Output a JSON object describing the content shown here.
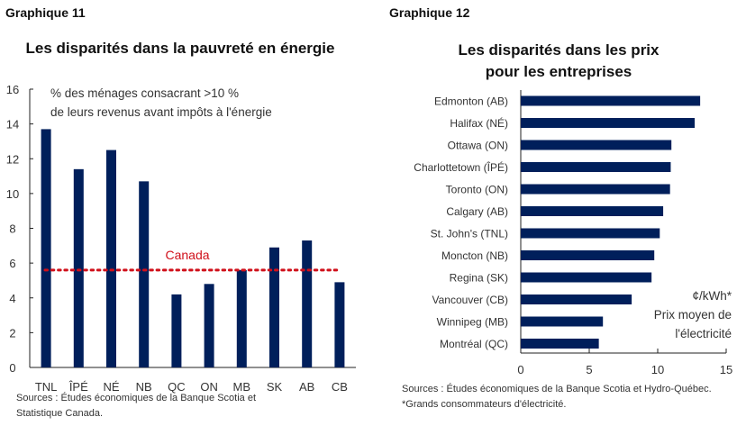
{
  "chart_data": [
    {
      "type": "bar",
      "label": "Graphique 11",
      "title": "Les disparités dans la pauvreté en énergie",
      "annotation": [
        "% des ménages consacrant >10 %",
        "de leurs revenus avant impôts à l'énergie"
      ],
      "categories": [
        "TNL",
        "ÎPÉ",
        "NÉ",
        "NB",
        "QC",
        "ON",
        "MB",
        "SK",
        "AB",
        "CB"
      ],
      "values": [
        13.7,
        11.4,
        12.5,
        10.7,
        4.2,
        4.8,
        5.6,
        6.9,
        7.3,
        4.9
      ],
      "reference_line": {
        "name": "Canada",
        "value": 5.6,
        "color": "#d0101b"
      },
      "ylim": [
        0,
        16
      ],
      "yticks": [
        0,
        2,
        4,
        6,
        8,
        10,
        12,
        14,
        16
      ],
      "bar_color": "#001f5b",
      "sources": "Sources : Études économiques de la Banque Scotia et Statistique Canada."
    },
    {
      "type": "bar",
      "orientation": "horizontal",
      "label": "Graphique 12",
      "title": [
        "Les disparités dans les prix",
        "pour les entreprises"
      ],
      "annotation": [
        "¢/kWh*",
        "Prix moyen de",
        "l'électricité"
      ],
      "categories": [
        "Edmonton (AB)",
        "Halifax (NÉ)",
        "Ottawa (ON)",
        "Charlottetown (ÎPÉ)",
        "Toronto (ON)",
        "Calgary (AB)",
        "St. John's (TNL)",
        "Moncton (NB)",
        "Regina (SK)",
        "Vancouver (CB)",
        "Winnipeg (MB)",
        "Montréal (QC)"
      ],
      "values": [
        13.1,
        12.7,
        11.0,
        10.95,
        10.9,
        10.4,
        10.15,
        9.75,
        9.55,
        8.1,
        6.0,
        5.7
      ],
      "xlim": [
        0,
        15
      ],
      "xticks": [
        0,
        5,
        10,
        15
      ],
      "bar_color": "#001f5b",
      "sources": "Sources : Études économiques de la Banque Scotia et Hydro-Québec.",
      "footnote": "*Grands consommateurs d'électricité."
    }
  ]
}
